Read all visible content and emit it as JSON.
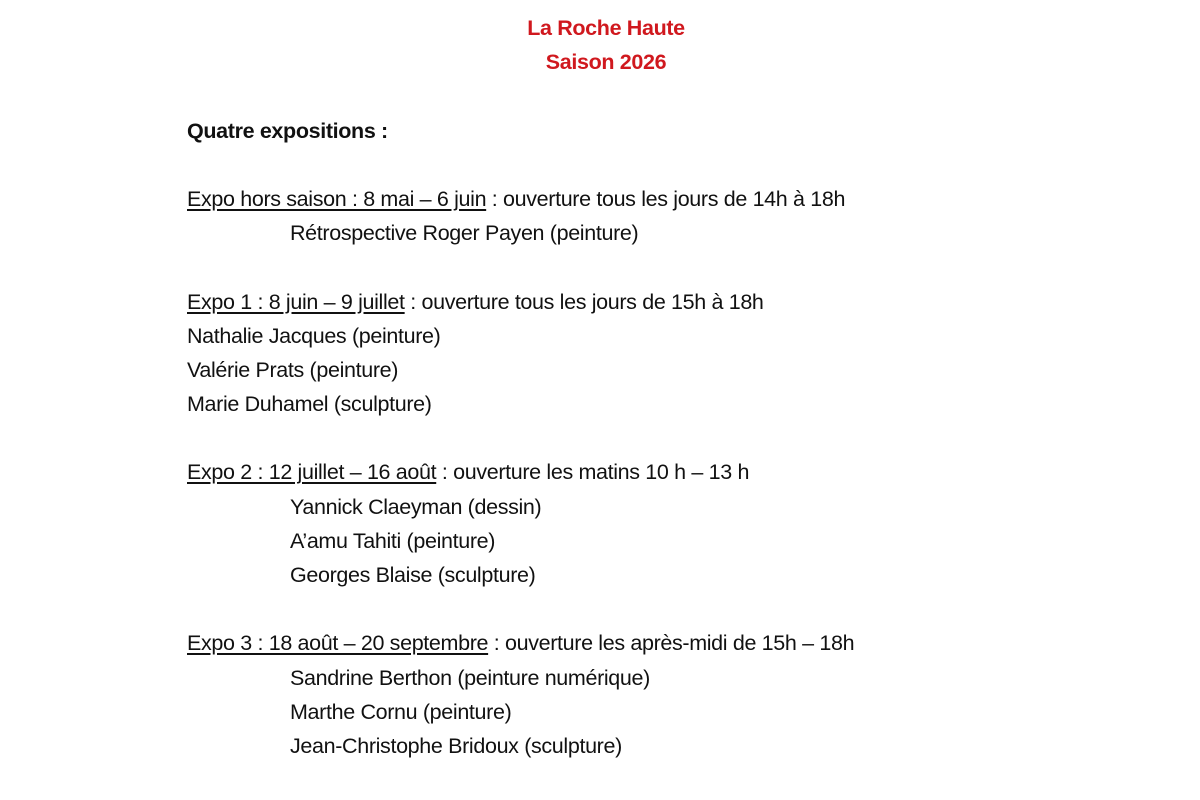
{
  "title": "La Roche Haute",
  "subtitle": "Saison 2026",
  "intro": "Quatre expositions :",
  "colors": {
    "title": "#d0181e",
    "text": "#111111"
  },
  "expos": [
    {
      "label": "Expo hors saison : 8 mai – 6 juin",
      "hours": " : ouverture tous les jours de 14h à 18h",
      "artists": [
        "Rétrospective Roger Payen (peinture)"
      ]
    },
    {
      "label": "Expo 1 :  8 juin – 9 juillet",
      "hours": " : ouverture tous les jours de 15h à 18h",
      "artists": [
        "Nathalie Jacques (peinture)",
        "Valérie Prats (peinture)",
        "Marie Duhamel (sculpture)"
      ]
    },
    {
      "label": "Expo 2 : 12 juillet – 16 août",
      "hours": " : ouverture les matins 10 h – 13 h",
      "artists": [
        "Yannick Claeyman (dessin)",
        "A’amu Tahiti (peinture)",
        "Georges Blaise (sculpture)"
      ]
    },
    {
      "label": "Expo 3 :  18 août – 20 septembre",
      "hours": " : ouverture les après-midi de 15h – 18h",
      "artists": [
        "Sandrine Berthon (peinture numérique)",
        "Marthe Cornu (peinture)",
        "Jean-Christophe Bridoux (sculpture)"
      ]
    }
  ]
}
